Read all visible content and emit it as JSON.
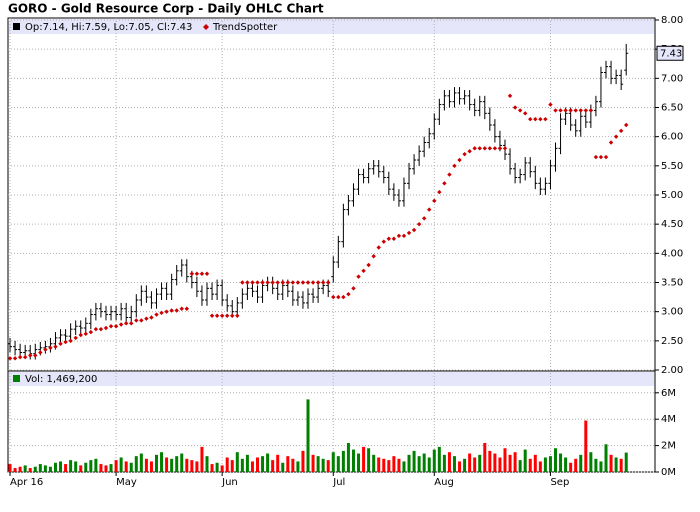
{
  "chart_data": {
    "type": "ohlc",
    "title": "GORO - Gold Resource Corp - Daily OHLC Chart",
    "info_label": "Op:7.14, Hi:7.59, Lo:7.05, Cl:7.43",
    "last_label": "7.43",
    "ohlc": {
      "color": "#000000",
      "open": [
        2.45,
        2.4,
        2.35,
        2.3,
        2.33,
        2.28,
        2.35,
        2.38,
        2.4,
        2.45,
        2.55,
        2.6,
        2.58,
        2.7,
        2.75,
        2.72,
        2.8,
        2.95,
        3.05,
        3.0,
        2.95,
        3.0,
        2.95,
        3.05,
        2.9,
        3.0,
        3.2,
        3.35,
        3.25,
        3.15,
        3.3,
        3.4,
        3.3,
        3.55,
        3.7,
        3.8,
        3.6,
        3.5,
        3.35,
        3.2,
        3.4,
        3.3,
        3.45,
        3.2,
        3.1,
        3.0,
        3.15,
        3.3,
        3.4,
        3.35,
        3.25,
        3.45,
        3.5,
        3.4,
        3.3,
        3.45,
        3.35,
        3.2,
        3.25,
        3.15,
        3.3,
        3.25,
        3.4,
        3.45,
        3.6,
        3.85,
        4.2,
        4.75,
        4.9,
        5.1,
        5.35,
        5.3,
        5.45,
        5.5,
        5.4,
        5.3,
        5.1,
        5.0,
        4.9,
        5.2,
        5.45,
        5.6,
        5.75,
        5.9,
        6.05,
        6.3,
        6.55,
        6.7,
        6.6,
        6.75,
        6.65,
        6.7,
        6.55,
        6.45,
        6.6,
        6.4,
        6.2,
        6.0,
        5.85,
        5.7,
        5.45,
        5.3,
        5.35,
        5.55,
        5.4,
        5.2,
        5.1,
        5.2,
        5.5,
        5.8,
        6.3,
        6.4,
        6.2,
        6.1,
        6.35,
        6.25,
        6.45,
        6.6,
        7.1,
        7.2,
        7.0,
        7.05,
        7.14
      ],
      "high": [
        2.55,
        2.5,
        2.45,
        2.43,
        2.43,
        2.45,
        2.48,
        2.5,
        2.55,
        2.65,
        2.7,
        2.7,
        2.8,
        2.85,
        2.85,
        2.9,
        3.05,
        3.15,
        3.15,
        3.1,
        3.1,
        3.1,
        3.15,
        3.15,
        3.1,
        3.3,
        3.45,
        3.45,
        3.35,
        3.4,
        3.5,
        3.5,
        3.65,
        3.8,
        3.9,
        3.9,
        3.7,
        3.6,
        3.45,
        3.5,
        3.5,
        3.55,
        3.55,
        3.3,
        3.2,
        3.25,
        3.4,
        3.5,
        3.5,
        3.45,
        3.55,
        3.6,
        3.6,
        3.5,
        3.55,
        3.55,
        3.45,
        3.35,
        3.35,
        3.4,
        3.4,
        3.5,
        3.55,
        3.55,
        3.95,
        4.3,
        4.85,
        5.0,
        5.2,
        5.45,
        5.45,
        5.55,
        5.6,
        5.6,
        5.5,
        5.4,
        5.2,
        5.1,
        5.3,
        5.55,
        5.7,
        5.85,
        6.0,
        6.15,
        6.4,
        6.65,
        6.8,
        6.8,
        6.85,
        6.85,
        6.8,
        6.8,
        6.65,
        6.7,
        6.7,
        6.5,
        6.3,
        6.1,
        5.95,
        5.8,
        5.55,
        5.45,
        5.65,
        5.65,
        5.5,
        5.3,
        5.3,
        5.6,
        5.9,
        6.4,
        6.5,
        6.5,
        6.3,
        6.45,
        6.45,
        6.55,
        6.7,
        7.2,
        7.3,
        7.3,
        7.15,
        7.15,
        7.59
      ],
      "low": [
        2.3,
        2.25,
        2.2,
        2.2,
        2.18,
        2.18,
        2.25,
        2.28,
        2.3,
        2.35,
        2.45,
        2.48,
        2.48,
        2.6,
        2.62,
        2.62,
        2.7,
        2.85,
        2.9,
        2.85,
        2.85,
        2.85,
        2.85,
        2.8,
        2.8,
        2.9,
        3.1,
        3.15,
        3.05,
        3.05,
        3.2,
        3.2,
        3.2,
        3.45,
        3.6,
        3.5,
        3.4,
        3.25,
        3.1,
        3.1,
        3.2,
        3.2,
        3.1,
        3.0,
        2.9,
        2.9,
        3.05,
        3.2,
        3.25,
        3.15,
        3.15,
        3.35,
        3.3,
        3.2,
        3.2,
        3.25,
        3.1,
        3.1,
        3.05,
        3.05,
        3.15,
        3.15,
        3.3,
        3.25,
        3.5,
        3.75,
        4.1,
        4.65,
        4.8,
        5.0,
        5.2,
        5.2,
        5.35,
        5.3,
        5.2,
        5.0,
        4.9,
        4.8,
        4.8,
        5.1,
        5.35,
        5.5,
        5.65,
        5.8,
        5.95,
        6.2,
        6.45,
        6.5,
        6.5,
        6.55,
        6.55,
        6.45,
        6.35,
        6.35,
        6.3,
        6.1,
        5.9,
        5.75,
        5.6,
        5.35,
        5.2,
        5.2,
        5.25,
        5.3,
        5.1,
        5.0,
        5.0,
        5.1,
        5.4,
        5.7,
        6.2,
        6.1,
        6.0,
        6.0,
        6.15,
        6.15,
        6.35,
        6.5,
        7.0,
        6.9,
        6.9,
        6.8,
        7.05
      ],
      "close": [
        2.4,
        2.35,
        2.3,
        2.33,
        2.28,
        2.35,
        2.38,
        2.4,
        2.45,
        2.55,
        2.6,
        2.58,
        2.7,
        2.75,
        2.72,
        2.8,
        2.95,
        3.05,
        3.0,
        2.95,
        3.0,
        2.95,
        3.05,
        2.9,
        3.0,
        3.2,
        3.35,
        3.25,
        3.15,
        3.3,
        3.4,
        3.3,
        3.55,
        3.7,
        3.8,
        3.6,
        3.5,
        3.35,
        3.2,
        3.4,
        3.3,
        3.45,
        3.2,
        3.1,
        3.0,
        3.15,
        3.3,
        3.4,
        3.35,
        3.25,
        3.45,
        3.5,
        3.4,
        3.3,
        3.45,
        3.35,
        3.2,
        3.25,
        3.15,
        3.3,
        3.25,
        3.4,
        3.45,
        3.35,
        3.85,
        4.2,
        4.75,
        4.9,
        5.1,
        5.35,
        5.3,
        5.45,
        5.5,
        5.4,
        5.3,
        5.1,
        5.0,
        4.9,
        5.2,
        5.45,
        5.6,
        5.75,
        5.9,
        6.05,
        6.3,
        6.55,
        6.7,
        6.6,
        6.75,
        6.65,
        6.7,
        6.55,
        6.45,
        6.6,
        6.4,
        6.2,
        6.0,
        5.85,
        5.7,
        5.45,
        5.3,
        5.35,
        5.55,
        5.4,
        5.2,
        5.1,
        5.2,
        5.5,
        5.8,
        6.3,
        6.4,
        6.2,
        6.1,
        6.35,
        6.25,
        6.45,
        6.6,
        7.1,
        7.2,
        7.0,
        7.05,
        6.9,
        7.43
      ]
    },
    "trend": {
      "name": "TrendSpotter",
      "color": "#cc0000",
      "values": [
        2.2,
        2.2,
        2.22,
        2.22,
        2.25,
        2.25,
        2.3,
        2.35,
        2.38,
        2.4,
        2.45,
        2.48,
        2.5,
        2.55,
        2.6,
        2.62,
        2.65,
        2.7,
        2.7,
        2.72,
        2.75,
        2.75,
        2.78,
        2.8,
        2.8,
        2.85,
        2.85,
        2.88,
        2.9,
        2.95,
        2.98,
        3.0,
        3.02,
        3.02,
        3.05,
        3.05,
        3.65,
        3.65,
        3.65,
        3.65,
        2.93,
        2.93,
        2.93,
        2.93,
        2.93,
        2.93,
        3.5,
        3.5,
        3.5,
        3.5,
        3.5,
        3.5,
        3.5,
        3.5,
        3.5,
        3.5,
        3.5,
        3.5,
        3.5,
        3.5,
        3.5,
        3.5,
        3.5,
        3.5,
        3.25,
        3.25,
        3.25,
        3.3,
        3.4,
        3.6,
        3.7,
        3.8,
        3.95,
        4.1,
        4.2,
        4.25,
        4.25,
        4.3,
        4.3,
        4.35,
        4.4,
        4.5,
        4.6,
        4.75,
        4.9,
        5.05,
        5.2,
        5.35,
        5.5,
        5.6,
        5.7,
        5.75,
        5.8,
        5.8,
        5.8,
        5.8,
        5.8,
        5.8,
        5.8,
        6.7,
        6.5,
        6.45,
        6.4,
        6.3,
        6.3,
        6.3,
        6.3,
        6.55,
        6.45,
        6.45,
        6.45,
        6.45,
        6.45,
        6.45,
        6.45,
        6.45,
        5.65,
        5.65,
        5.65,
        5.9,
        6.0,
        6.1,
        6.2
      ]
    },
    "xlim": [
      -0.4,
      127.7
    ],
    "xticks": [
      {
        "value": 0,
        "label": "Apr 16"
      },
      {
        "value": 21,
        "label": "May"
      },
      {
        "value": 42,
        "label": "Jun"
      },
      {
        "value": 64,
        "label": "Jul"
      },
      {
        "value": 84,
        "label": "Aug"
      },
      {
        "value": 107,
        "label": "Sep"
      }
    ],
    "ylim": [
      2,
      8
    ],
    "yticks": [
      {
        "value": 2,
        "label": "2.00"
      },
      {
        "value": 2.5,
        "label": "2.50"
      },
      {
        "value": 3,
        "label": "3.00"
      },
      {
        "value": 3.5,
        "label": "3.50"
      },
      {
        "value": 4,
        "label": "4.00"
      },
      {
        "value": 4.5,
        "label": "4.50"
      },
      {
        "value": 5,
        "label": "5.00"
      },
      {
        "value": 5.5,
        "label": "5.50"
      },
      {
        "value": 6,
        "label": "6.00"
      },
      {
        "value": 6.5,
        "label": "6.50"
      },
      {
        "value": 7,
        "label": "7.00"
      },
      {
        "value": 7.5,
        "label": "7.50"
      },
      {
        "value": 8,
        "label": "8.00"
      }
    ],
    "grid": true,
    "volume": {
      "label": "Vol: 1,469,200",
      "up_color": "#008000",
      "down_color": "#ff0000",
      "flat_color": "#0000cc",
      "ylim": [
        0,
        7.5
      ],
      "yticks": [
        {
          "value": 0,
          "label": "0M"
        },
        {
          "value": 2,
          "label": "2M"
        },
        {
          "value": 4,
          "label": "4M"
        },
        {
          "value": 6,
          "label": "6M"
        }
      ],
      "values": [
        0.6,
        0.3,
        0.4,
        0.5,
        0.3,
        0.4,
        0.6,
        0.5,
        0.4,
        0.7,
        0.8,
        0.6,
        0.9,
        0.8,
        0.5,
        0.7,
        0.9,
        1.0,
        0.6,
        0.5,
        0.6,
        0.9,
        1.1,
        0.8,
        0.7,
        1.2,
        1.4,
        1.0,
        0.8,
        1.3,
        1.5,
        1.1,
        1.0,
        1.2,
        1.4,
        1.0,
        0.9,
        0.8,
        1.9,
        1.2,
        0.6,
        0.7,
        0.5,
        1.1,
        0.9,
        1.5,
        1.0,
        1.3,
        0.8,
        1.1,
        1.2,
        1.4,
        0.9,
        1.3,
        0.7,
        1.2,
        1.0,
        0.8,
        1.6,
        5.5,
        1.3,
        1.2,
        1.0,
        0.9,
        1.5,
        1.2,
        1.6,
        2.2,
        1.7,
        1.4,
        1.9,
        1.8,
        1.3,
        1.1,
        1.0,
        0.9,
        1.2,
        1.0,
        0.8,
        1.3,
        1.6,
        1.2,
        1.4,
        1.1,
        1.7,
        1.9,
        1.3,
        1.5,
        1.2,
        0.8,
        1.0,
        1.4,
        1.1,
        1.3,
        2.2,
        1.6,
        1.4,
        1.1,
        1.8,
        1.3,
        1.5,
        0.9,
        1.7,
        1.0,
        1.3,
        0.8,
        1.1,
        1.2,
        1.8,
        1.4,
        1.1,
        0.7,
        1.0,
        1.3,
        3.9,
        1.5,
        1.0,
        0.8,
        2.1,
        1.3,
        1.1,
        1.0,
        1.4692
      ]
    }
  }
}
